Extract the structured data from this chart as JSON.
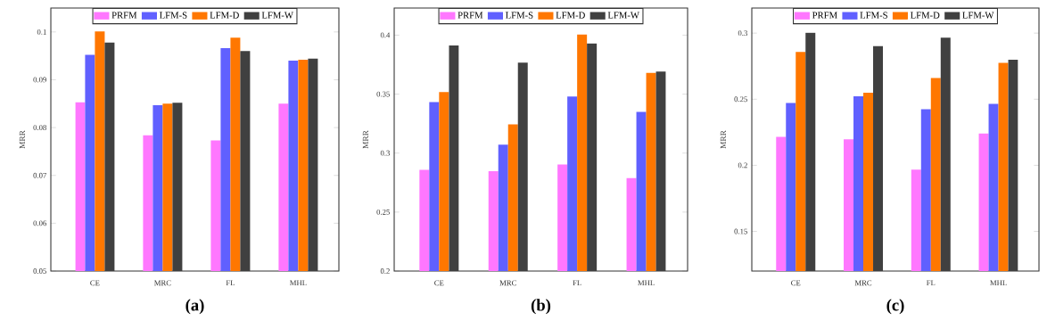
{
  "chart_data": [
    {
      "type": "bar",
      "title": "**(a)**",
      "ylabel": "MRR",
      "categories": [
        "CE",
        "MRC",
        "FL",
        "MHL"
      ],
      "ylim": [
        0.05,
        0.105
      ],
      "yticks": [
        0.05,
        0.06,
        0.07,
        0.08,
        0.09,
        0.1
      ],
      "legend": "top",
      "series": [
        {
          "name": "PRFM",
          "color": "#ff77ff",
          "values": [
            0.0853,
            0.0784,
            0.0773,
            0.085
          ]
        },
        {
          "name": "LFM-S",
          "color": "#6060ff",
          "values": [
            0.0952,
            0.0847,
            0.0966,
            0.094
          ]
        },
        {
          "name": "LFM-D",
          "color": "#ff7700",
          "values": [
            0.1001,
            0.085,
            0.0988,
            0.0942
          ]
        },
        {
          "name": "LFM-W",
          "color": "#404040",
          "values": [
            0.0978,
            0.0852,
            0.096,
            0.0944
          ]
        }
      ]
    },
    {
      "type": "bar",
      "title": "**(b)**",
      "ylabel": "MRR",
      "categories": [
        "CE",
        "MRC",
        "FL",
        "MHL"
      ],
      "ylim": [
        0.2,
        0.423
      ],
      "yticks": [
        0.2,
        0.25,
        0.3,
        0.35,
        0.4
      ],
      "legend": "top",
      "series": [
        {
          "name": "PRFM",
          "color": "#ff77ff",
          "values": [
            0.2858,
            0.2846,
            0.2903,
            0.2788
          ]
        },
        {
          "name": "LFM-S",
          "color": "#6060ff",
          "values": [
            0.3433,
            0.3072,
            0.348,
            0.335
          ]
        },
        {
          "name": "LFM-D",
          "color": "#ff7700",
          "values": [
            0.3517,
            0.3243,
            0.4005,
            0.3681
          ]
        },
        {
          "name": "LFM-W",
          "color": "#404040",
          "values": [
            0.3912,
            0.3767,
            0.393,
            0.3691
          ]
        }
      ]
    },
    {
      "type": "bar",
      "title": "**(c)**",
      "ylabel": "MRR",
      "categories": [
        "CE",
        "MRC",
        "FL",
        "MHL"
      ],
      "ylim": [
        0.12,
        0.319
      ],
      "yticks": [
        0.15,
        0.2,
        0.25,
        0.3
      ],
      "legend": "top",
      "series": [
        {
          "name": "PRFM",
          "color": "#ff77ff",
          "values": [
            0.2215,
            0.2197,
            0.1968,
            0.224
          ]
        },
        {
          "name": "LFM-S",
          "color": "#6060ff",
          "values": [
            0.2472,
            0.2523,
            0.2424,
            0.2465
          ]
        },
        {
          "name": "LFM-D",
          "color": "#ff7700",
          "values": [
            0.2858,
            0.255,
            0.266,
            0.2775
          ]
        },
        {
          "name": "LFM-W",
          "color": "#404040",
          "values": [
            0.3002,
            0.2901,
            0.2966,
            0.2798
          ]
        }
      ]
    }
  ]
}
